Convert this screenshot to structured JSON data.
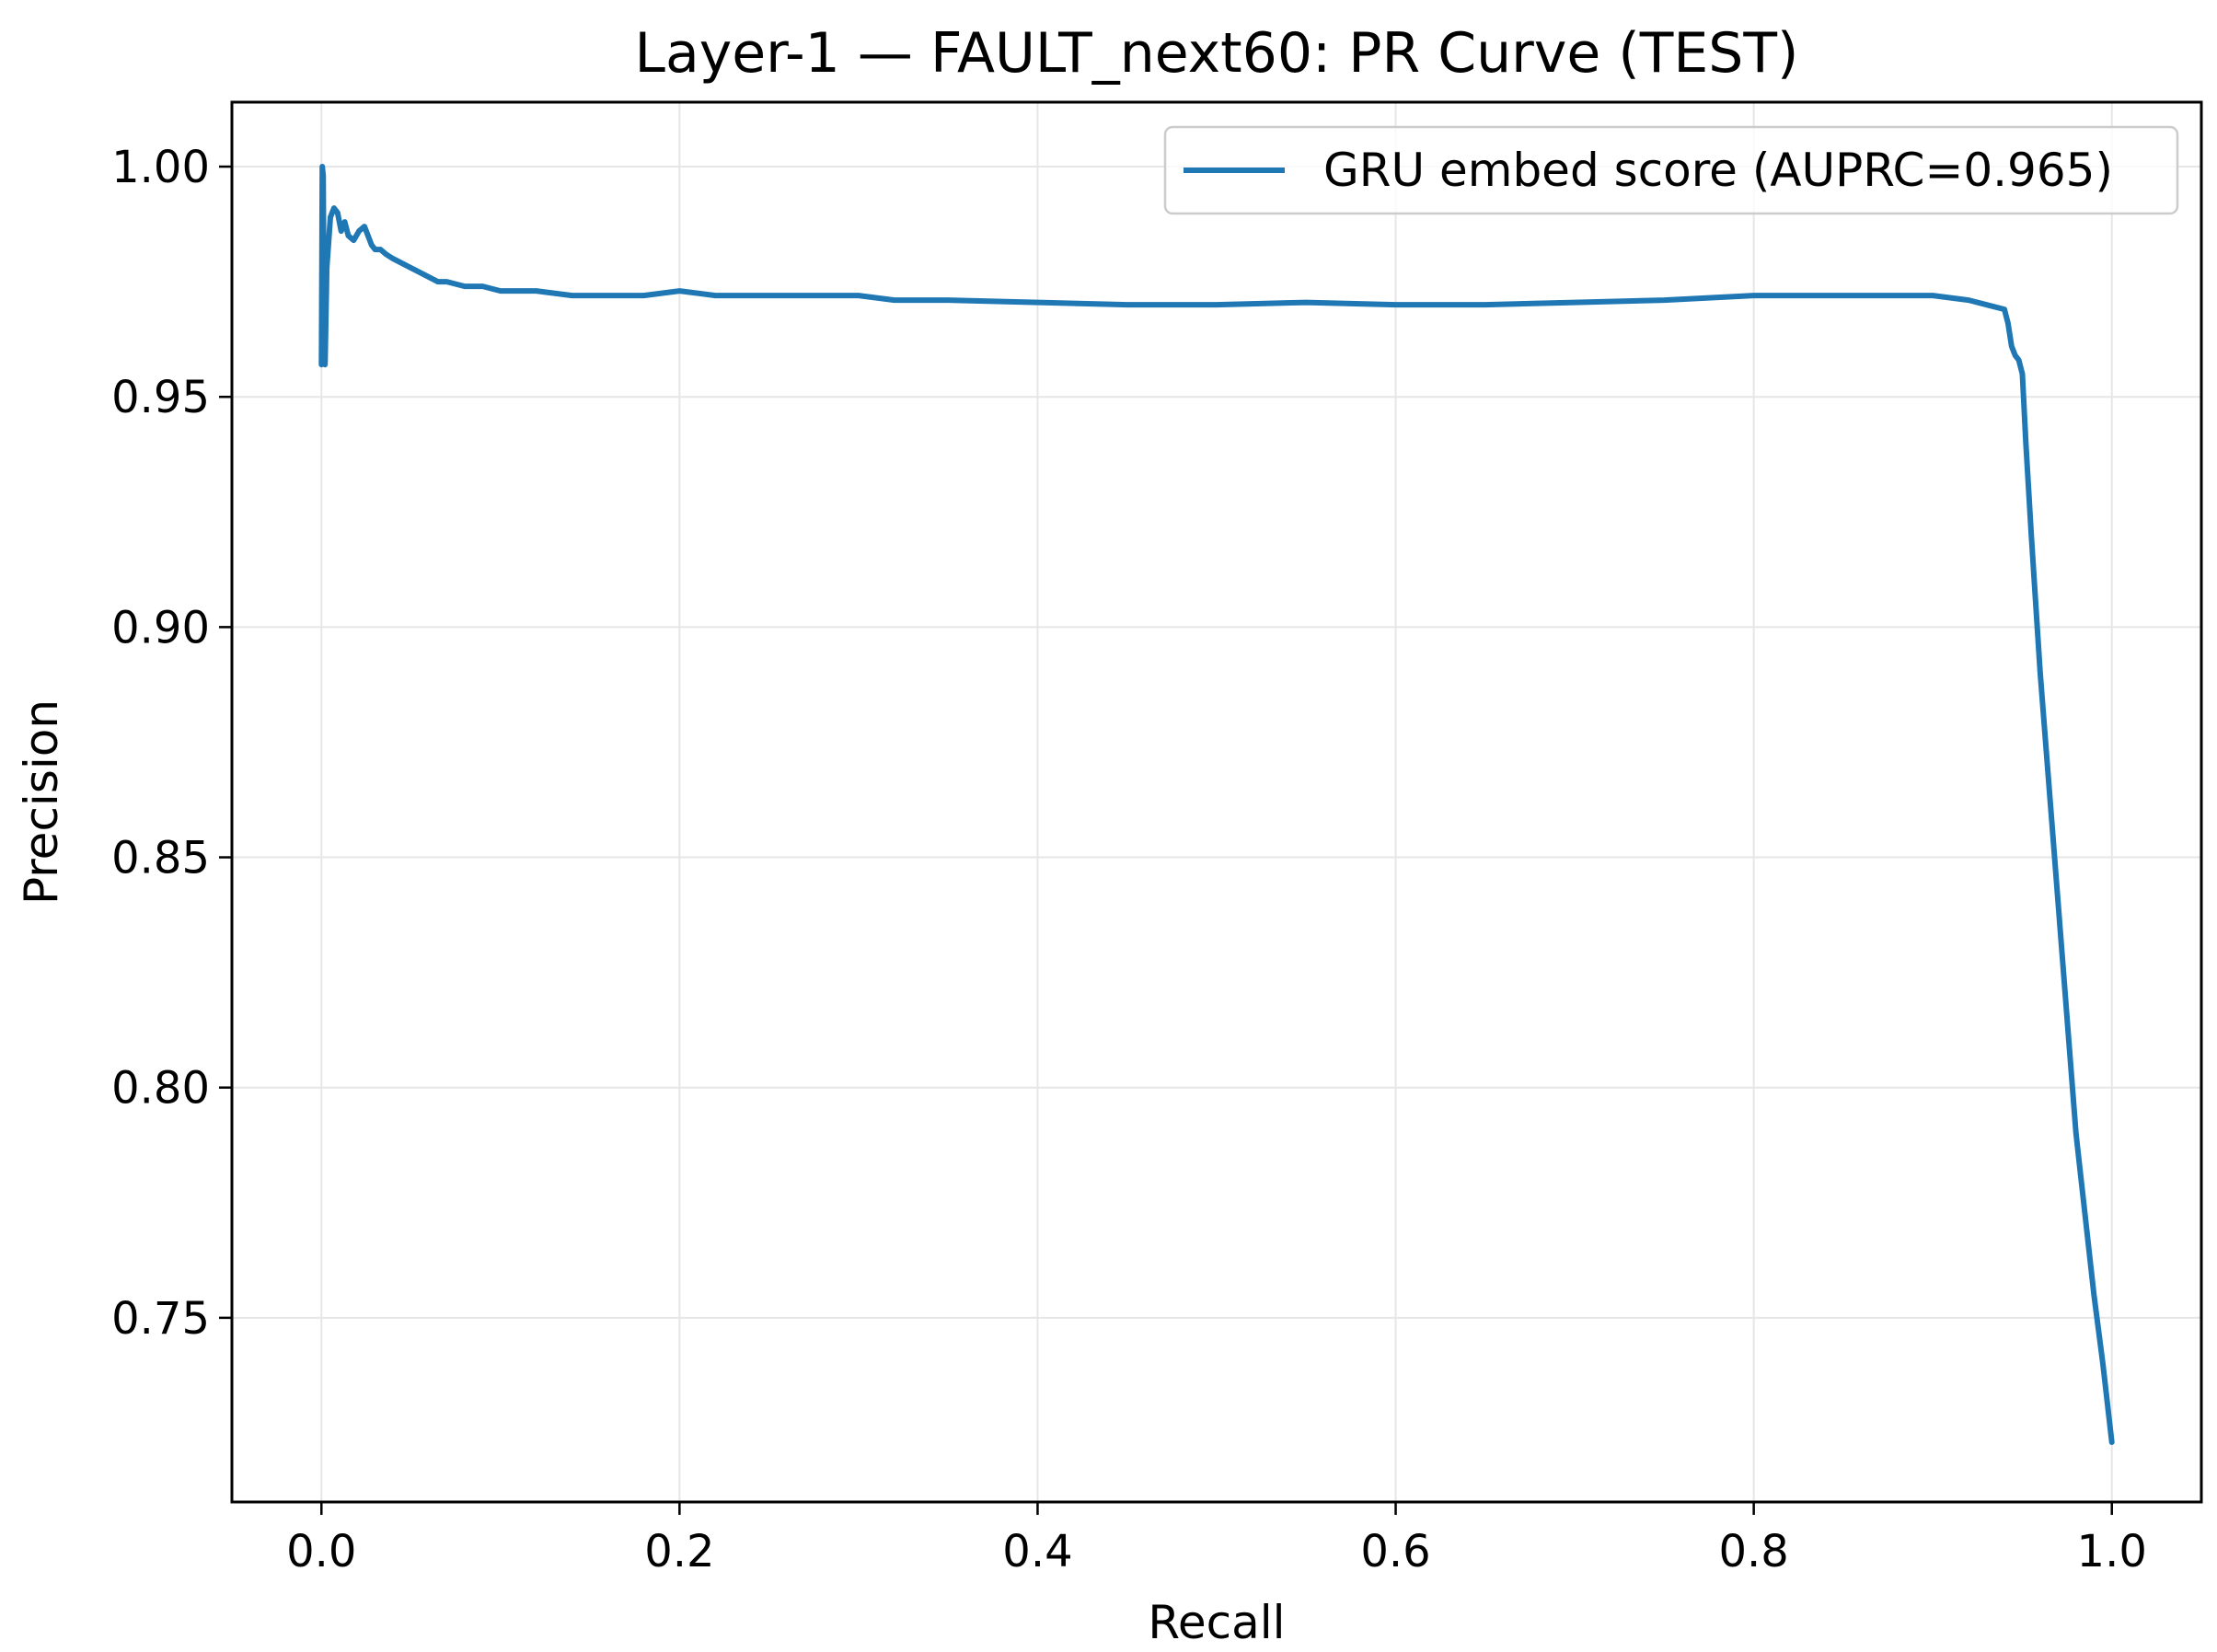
{
  "chart_data": {
    "type": "line",
    "title": "Layer-1 — FAULT_next60: PR Curve (TEST)",
    "xlabel": "Recall",
    "ylabel": "Precision",
    "xlim": [
      -0.05,
      1.05
    ],
    "ylim": [
      0.71,
      1.014
    ],
    "grid": true,
    "legend_position": "top-right",
    "xticks": [
      {
        "value": 0.0,
        "label": "0.0"
      },
      {
        "value": 0.2,
        "label": "0.2"
      },
      {
        "value": 0.4,
        "label": "0.4"
      },
      {
        "value": 0.6,
        "label": "0.6"
      },
      {
        "value": 0.8,
        "label": "0.8"
      },
      {
        "value": 1.0,
        "label": "1.0"
      }
    ],
    "yticks": [
      {
        "value": 0.75,
        "label": "0.75"
      },
      {
        "value": 0.8,
        "label": "0.80"
      },
      {
        "value": 0.85,
        "label": "0.85"
      },
      {
        "value": 0.9,
        "label": "0.90"
      },
      {
        "value": 0.95,
        "label": "0.95"
      },
      {
        "value": 1.0,
        "label": "1.00"
      }
    ],
    "series": [
      {
        "name": "GRU embed score (AUPRC=0.965)",
        "color": "#1f77b4",
        "x": [
          0.0,
          0.0005,
          0.001,
          0.0015,
          0.002,
          0.003,
          0.005,
          0.007,
          0.009,
          0.011,
          0.013,
          0.015,
          0.018,
          0.021,
          0.024,
          0.026,
          0.028,
          0.03,
          0.033,
          0.036,
          0.04,
          0.045,
          0.05,
          0.055,
          0.06,
          0.065,
          0.07,
          0.08,
          0.09,
          0.1,
          0.12,
          0.14,
          0.16,
          0.18,
          0.2,
          0.22,
          0.25,
          0.28,
          0.3,
          0.32,
          0.35,
          0.4,
          0.45,
          0.5,
          0.55,
          0.6,
          0.65,
          0.7,
          0.75,
          0.8,
          0.85,
          0.88,
          0.9,
          0.92,
          0.94,
          0.942,
          0.944,
          0.946,
          0.948,
          0.95,
          0.952,
          0.955,
          0.96,
          0.97,
          0.98,
          0.99,
          0.995,
          1.0
        ],
        "y": [
          0.957,
          1.0,
          0.998,
          0.962,
          0.957,
          0.978,
          0.989,
          0.991,
          0.99,
          0.986,
          0.988,
          0.985,
          0.984,
          0.986,
          0.987,
          0.985,
          0.983,
          0.982,
          0.982,
          0.981,
          0.98,
          0.979,
          0.978,
          0.977,
          0.976,
          0.975,
          0.975,
          0.974,
          0.974,
          0.973,
          0.973,
          0.972,
          0.972,
          0.972,
          0.973,
          0.972,
          0.972,
          0.972,
          0.972,
          0.971,
          0.971,
          0.9705,
          0.97,
          0.97,
          0.9705,
          0.97,
          0.97,
          0.9705,
          0.971,
          0.972,
          0.972,
          0.972,
          0.972,
          0.971,
          0.969,
          0.966,
          0.961,
          0.959,
          0.958,
          0.955,
          0.94,
          0.92,
          0.89,
          0.84,
          0.79,
          0.755,
          0.74,
          0.723
        ]
      }
    ]
  }
}
